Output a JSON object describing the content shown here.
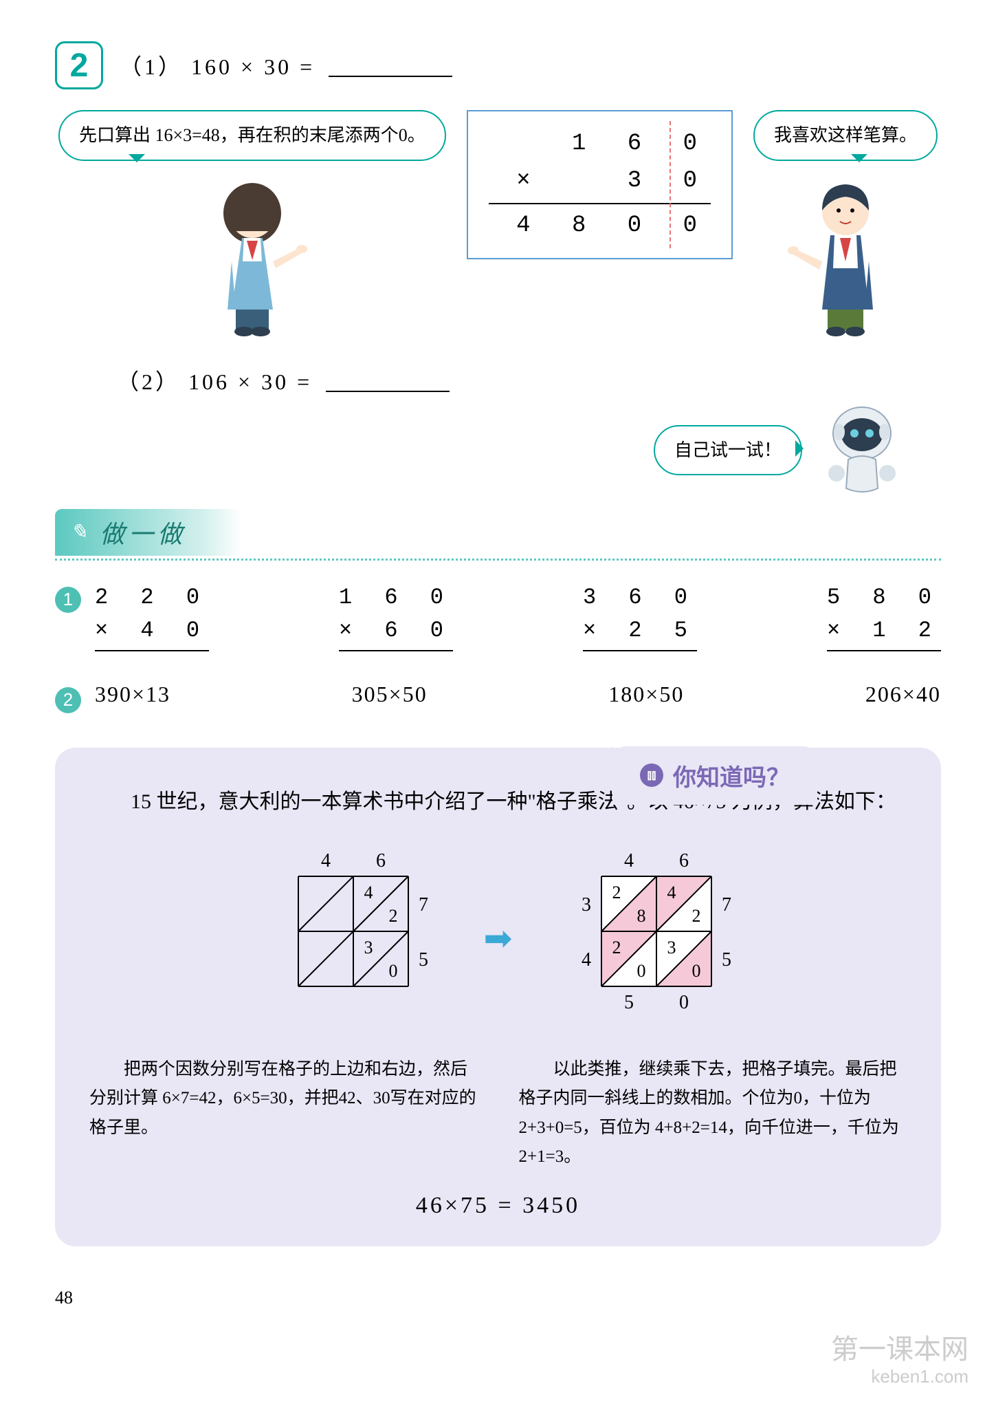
{
  "problem2": {
    "number": "2",
    "part1_label": "（1）",
    "part1_expr": "160 × 30 =",
    "part2_label": "（2）",
    "part2_expr": "106 × 30 =",
    "bubble_left": "先口算出 16×3=48，再在积的末尾添两个0。",
    "bubble_right": "我喜欢这样笔算。",
    "bubble_robot": "自己试一试！",
    "calc": {
      "r1": "  1 6 0",
      "r2": "×   3 0",
      "r3": " 4 8 0 0"
    }
  },
  "try_section": {
    "title": "做一做",
    "exercises1": [
      {
        "top": "2 2 0",
        "bot": "×  4 0"
      },
      {
        "top": "1 6 0",
        "bot": "×  6 0"
      },
      {
        "top": "3 6 0",
        "bot": "× 2 5"
      },
      {
        "top": "5 8 0",
        "bot": "× 1 2"
      }
    ],
    "exercises2": [
      "390×13",
      "305×50",
      "180×50",
      "206×40"
    ]
  },
  "know": {
    "tab": "你知道吗？",
    "intro": "15 世纪，意大利的一本算术书中介绍了一种\"格子乘法\"。以 46×75 为例，算法如下：",
    "lattice1": {
      "top": [
        "4",
        "6"
      ],
      "right": [
        "7",
        "5"
      ],
      "cells": [
        [
          "",
          ""
        ],
        [
          "4",
          "2"
        ],
        [
          "",
          ""
        ],
        [
          "3",
          "0"
        ]
      ],
      "left": [
        "",
        ""
      ],
      "bottom": [
        "",
        ""
      ],
      "fills": [
        "none",
        "none",
        "none",
        "none",
        "none",
        "none",
        "none",
        "none"
      ]
    },
    "lattice2": {
      "top": [
        "4",
        "6"
      ],
      "right": [
        "7",
        "5"
      ],
      "cells": [
        [
          "2",
          "8"
        ],
        [
          "4",
          "2"
        ],
        [
          "2",
          "0"
        ],
        [
          "3",
          "0"
        ]
      ],
      "left": [
        "3",
        "4"
      ],
      "bottom": [
        "5",
        "0"
      ],
      "fills": [
        "#fff",
        "#f5c9d8",
        "#f5c9d8",
        "#fff",
        "#f5c9d8",
        "#fff",
        "#fff",
        "#f5c9d8"
      ]
    },
    "explain_left": "把两个因数分别写在格子的上边和右边，然后分别计算 6×7=42，6×5=30，并把42、30写在对应的格子里。",
    "explain_right": "以此类推，继续乘下去，把格子填完。最后把格子内同一斜线上的数相加。个位为0，十位为 2+3+0=5，百位为 4+8+2=14，向千位进一，千位为 2+1=3。",
    "final": "46×75 = 3450"
  },
  "page_number": "48",
  "watermark": {
    "cn": "第一课本网",
    "en": "keben1.com"
  },
  "colors": {
    "teal": "#00a89d",
    "teal_fill": "#5cc9c0",
    "panel_bg": "#e9e6f5",
    "purple": "#7b68b5",
    "box_blue": "#5b9bd5",
    "pink": "#f5c9d8",
    "arrow": "#3ba9d6",
    "dash_red": "#e57373"
  }
}
